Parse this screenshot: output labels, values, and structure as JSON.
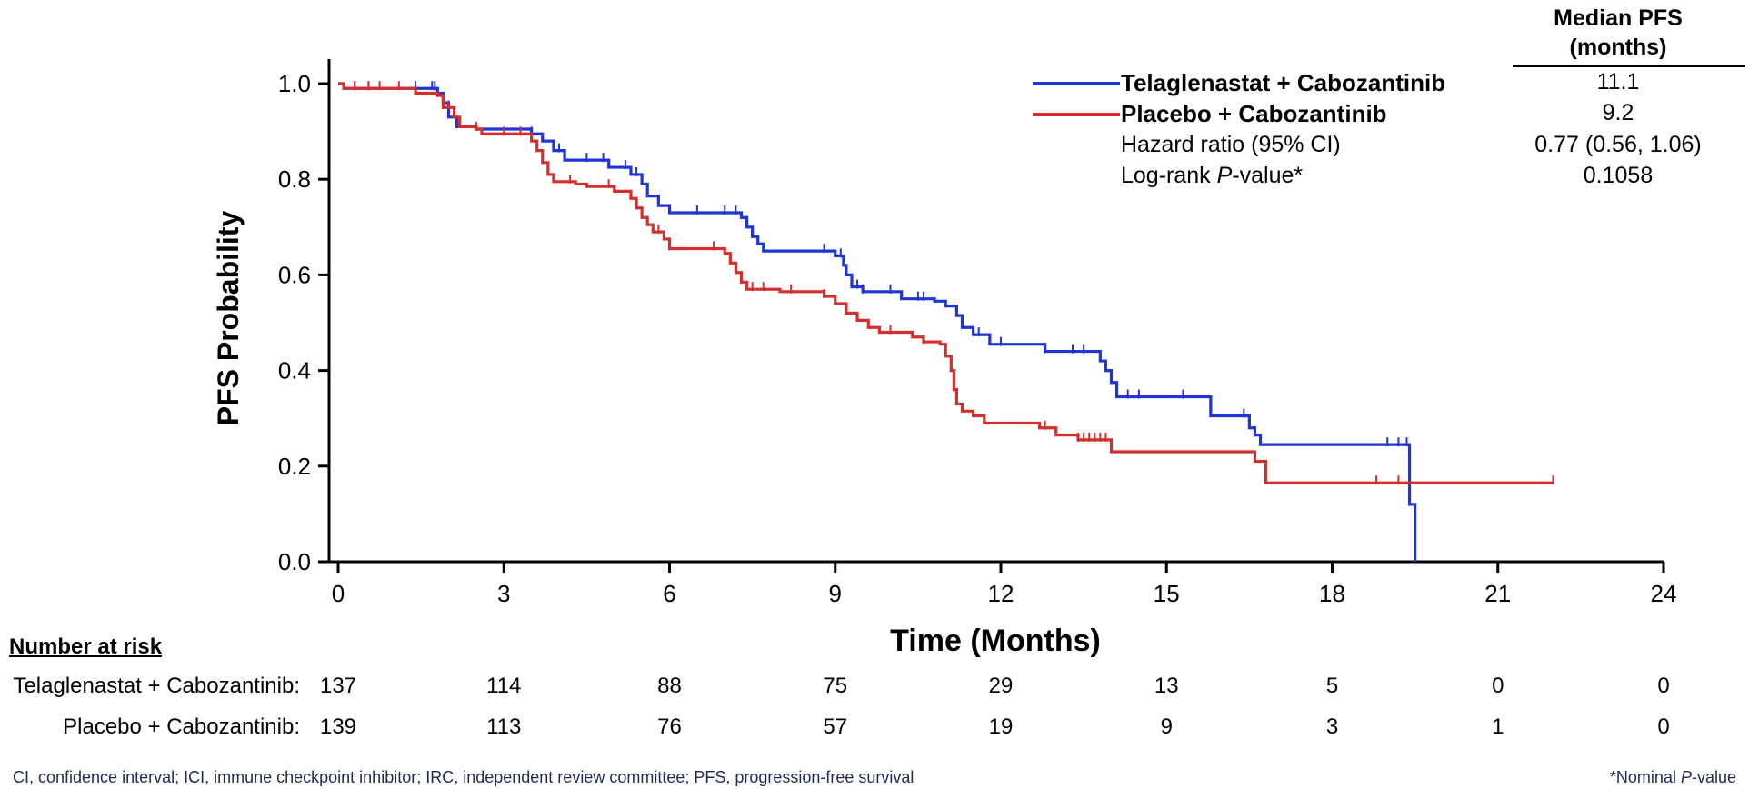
{
  "chart_data": {
    "type": "line",
    "subtype": "kaplan-meier",
    "xlabel": "Time (Months)",
    "ylabel": "PFS Probability",
    "xlim": [
      0,
      24
    ],
    "ylim": [
      0,
      1.0
    ],
    "xticks": [
      "0",
      "3",
      "6",
      "9",
      "12",
      "15",
      "18",
      "21",
      "24"
    ],
    "yticks": [
      "0.0",
      "0.2",
      "0.4",
      "0.6",
      "0.8",
      "1.0"
    ],
    "grid": false,
    "series": [
      {
        "name": "Telaglenastat + Cabozantinib",
        "color": "#1f35d6",
        "steps": [
          [
            0,
            1.0
          ],
          [
            0.1,
            0.99
          ],
          [
            1.75,
            0.99
          ],
          [
            1.8,
            0.98
          ],
          [
            1.9,
            0.96
          ],
          [
            2.0,
            0.93
          ],
          [
            2.15,
            0.91
          ],
          [
            2.5,
            0.905
          ],
          [
            3.5,
            0.895
          ],
          [
            3.7,
            0.88
          ],
          [
            3.9,
            0.86
          ],
          [
            4.1,
            0.84
          ],
          [
            4.9,
            0.825
          ],
          [
            5.3,
            0.81
          ],
          [
            5.5,
            0.79
          ],
          [
            5.6,
            0.765
          ],
          [
            5.8,
            0.745
          ],
          [
            6.0,
            0.73
          ],
          [
            7.3,
            0.72
          ],
          [
            7.4,
            0.7
          ],
          [
            7.5,
            0.68
          ],
          [
            7.6,
            0.665
          ],
          [
            7.7,
            0.65
          ],
          [
            9.0,
            0.64
          ],
          [
            9.15,
            0.62
          ],
          [
            9.2,
            0.6
          ],
          [
            9.3,
            0.575
          ],
          [
            9.5,
            0.565
          ],
          [
            10.2,
            0.55
          ],
          [
            10.8,
            0.545
          ],
          [
            11.0,
            0.535
          ],
          [
            11.2,
            0.515
          ],
          [
            11.3,
            0.49
          ],
          [
            11.5,
            0.475
          ],
          [
            11.8,
            0.455
          ],
          [
            12.8,
            0.44
          ],
          [
            13.8,
            0.42
          ],
          [
            13.9,
            0.4
          ],
          [
            14.0,
            0.375
          ],
          [
            14.1,
            0.345
          ],
          [
            15.8,
            0.305
          ],
          [
            16.5,
            0.28
          ],
          [
            16.6,
            0.265
          ],
          [
            16.7,
            0.245
          ],
          [
            19.35,
            0.245
          ],
          [
            19.4,
            0.12
          ],
          [
            19.5,
            0.0
          ]
        ],
        "censor_times": [
          0.3,
          0.55,
          1.4,
          1.7,
          1.75,
          3.5,
          4.0,
          4.5,
          4.8,
          5.2,
          5.4,
          6.5,
          7.0,
          7.2,
          8.8,
          9.1,
          9.4,
          9.5,
          10.0,
          10.5,
          10.6,
          11.6,
          12.0,
          12.8,
          13.3,
          13.5,
          14.3,
          14.5,
          15.3,
          16.4,
          19.0,
          19.2,
          19.35
        ],
        "median_pfs": "11.1"
      },
      {
        "name": "Placebo + Cabozantinib",
        "color": "#d32f2f",
        "steps": [
          [
            0,
            1.0
          ],
          [
            0.1,
            0.99
          ],
          [
            1.4,
            0.98
          ],
          [
            1.8,
            0.975
          ],
          [
            1.9,
            0.95
          ],
          [
            2.1,
            0.93
          ],
          [
            2.2,
            0.91
          ],
          [
            2.5,
            0.905
          ],
          [
            2.6,
            0.895
          ],
          [
            3.5,
            0.88
          ],
          [
            3.6,
            0.86
          ],
          [
            3.7,
            0.835
          ],
          [
            3.8,
            0.81
          ],
          [
            3.9,
            0.795
          ],
          [
            4.3,
            0.79
          ],
          [
            4.5,
            0.785
          ],
          [
            5.0,
            0.775
          ],
          [
            5.3,
            0.76
          ],
          [
            5.4,
            0.74
          ],
          [
            5.5,
            0.72
          ],
          [
            5.6,
            0.705
          ],
          [
            5.7,
            0.69
          ],
          [
            5.9,
            0.675
          ],
          [
            6.0,
            0.655
          ],
          [
            7.0,
            0.645
          ],
          [
            7.1,
            0.625
          ],
          [
            7.2,
            0.605
          ],
          [
            7.3,
            0.585
          ],
          [
            7.4,
            0.57
          ],
          [
            8.0,
            0.565
          ],
          [
            8.8,
            0.555
          ],
          [
            9.0,
            0.54
          ],
          [
            9.2,
            0.52
          ],
          [
            9.4,
            0.505
          ],
          [
            9.6,
            0.49
          ],
          [
            9.8,
            0.48
          ],
          [
            10.4,
            0.47
          ],
          [
            10.6,
            0.46
          ],
          [
            10.9,
            0.455
          ],
          [
            11.0,
            0.43
          ],
          [
            11.1,
            0.4
          ],
          [
            11.15,
            0.36
          ],
          [
            11.2,
            0.33
          ],
          [
            11.3,
            0.315
          ],
          [
            11.5,
            0.305
          ],
          [
            11.7,
            0.29
          ],
          [
            12.7,
            0.28
          ],
          [
            13.0,
            0.265
          ],
          [
            13.4,
            0.255
          ],
          [
            14.0,
            0.23
          ],
          [
            16.6,
            0.21
          ],
          [
            16.8,
            0.165
          ],
          [
            22.0,
            0.165
          ]
        ],
        "censor_times": [
          0.3,
          0.55,
          0.75,
          1.1,
          2.0,
          2.5,
          3.0,
          3.3,
          4.2,
          4.9,
          5.8,
          6.0,
          6.8,
          7.3,
          7.5,
          7.7,
          8.2,
          8.8,
          10.0,
          10.6,
          12.8,
          13.4,
          13.5,
          13.6,
          13.7,
          13.8,
          13.9,
          18.8,
          19.2,
          22.0
        ],
        "median_pfs": "9.2"
      }
    ]
  },
  "legend": {
    "median_header_line1": "Median PFS",
    "median_header_line2": "(months)",
    "rows": [
      {
        "label": "Telaglenastat + Cabozantinib",
        "value": "11.1",
        "color": "#1f35d6"
      },
      {
        "label": "Placebo + Cabozantinib",
        "value": "9.2",
        "color": "#d32f2f"
      }
    ],
    "hazard_label": "Hazard ratio (95% CI)",
    "hazard_value": "0.77 (0.56, 1.06)",
    "logrank_label_pre": "Log-rank ",
    "logrank_label_italic": "P",
    "logrank_label_post": "-value*",
    "logrank_value": "0.1058"
  },
  "risk_table": {
    "title": "Number at risk",
    "rows": [
      {
        "label": "Telaglenastat + Cabozantinib:",
        "values": [
          "137",
          "114",
          "88",
          "75",
          "29",
          "13",
          "5",
          "0",
          "0"
        ]
      },
      {
        "label": "Placebo + Cabozantinib:",
        "values": [
          "139",
          "113",
          "76",
          "57",
          "19",
          "9",
          "3",
          "1",
          "0"
        ]
      }
    ]
  },
  "footnotes": {
    "abbreviations": "CI, confidence interval; ICI, immune checkpoint inhibitor; IRC, independent review committee; PFS, progression-free survival",
    "nominal_pre": "*Nominal ",
    "nominal_italic": "P",
    "nominal_post": "-value"
  }
}
